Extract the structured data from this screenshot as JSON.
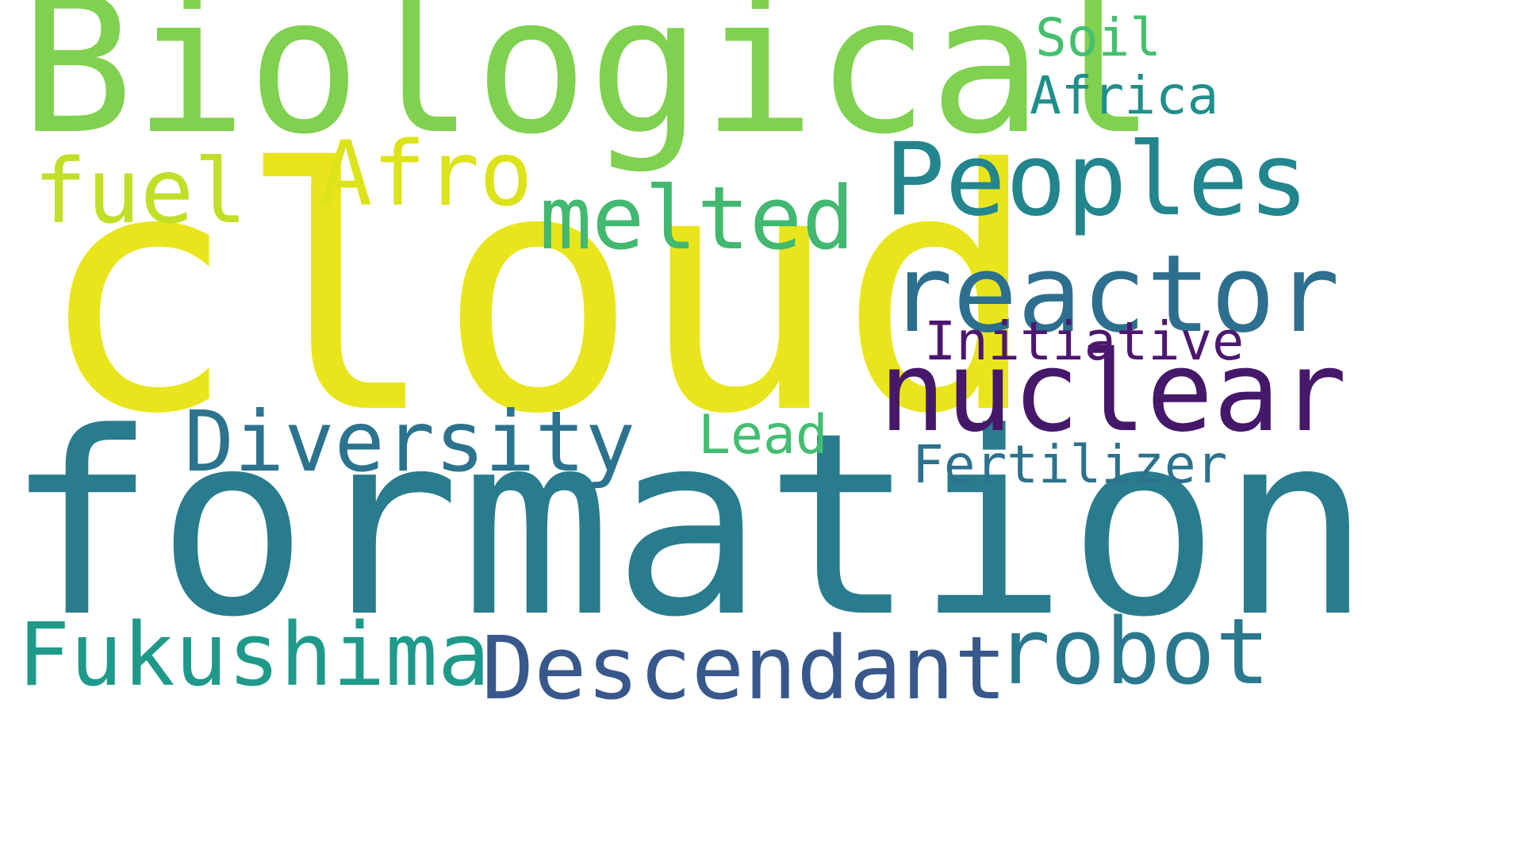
{
  "words": [
    {
      "text": "cloud",
      "color": "#e9e51d"
    },
    {
      "text": "formation",
      "color": "#297c8e"
    },
    {
      "text": "Biological",
      "color": "#7fd14f"
    },
    {
      "text": "nuclear",
      "color": "#45186a"
    },
    {
      "text": "reactor",
      "color": "#2d6f8e"
    },
    {
      "text": "Peoples",
      "color": "#23858d"
    },
    {
      "text": "melted",
      "color": "#42b870"
    },
    {
      "text": "Afro",
      "color": "#dde31a"
    },
    {
      "text": "fuel",
      "color": "#c1df26"
    },
    {
      "text": "Diversity",
      "color": "#2b738e"
    },
    {
      "text": "Fukushima",
      "color": "#1f9a8a"
    },
    {
      "text": "Descendant",
      "color": "#38588c"
    },
    {
      "text": "robot",
      "color": "#2a788e"
    },
    {
      "text": "Initiative",
      "color": "#4d1770"
    },
    {
      "text": "Fertilizer",
      "color": "#2c728e"
    },
    {
      "text": "Lead",
      "color": "#42be71"
    },
    {
      "text": "Soil",
      "color": "#45c06f"
    },
    {
      "text": "Africa",
      "color": "#208f8c"
    }
  ]
}
